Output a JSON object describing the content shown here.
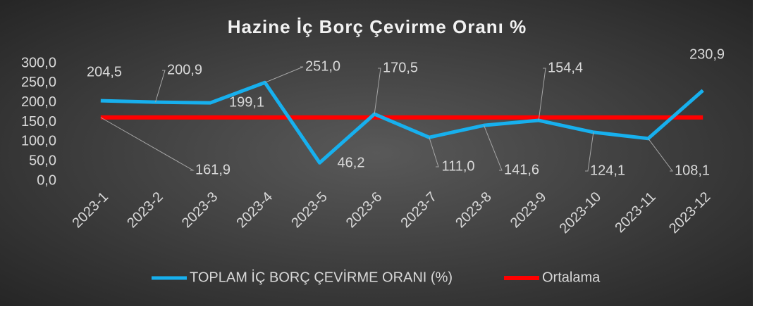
{
  "chart_data": {
    "type": "line",
    "title": "Hazine İç Borç Çevirme Oranı %",
    "categories": [
      "2023-1",
      "2023-2",
      "2023-3",
      "2023-4",
      "2023-5",
      "2023-6",
      "2023-7",
      "2023-8",
      "2023-9",
      "2023-10",
      "2023-11",
      "2023-12"
    ],
    "series": [
      {
        "name": "TOPLAM İÇ BORÇ ÇEVİRME ORANI (%)",
        "color": "#17b0ee",
        "values": [
          204.5,
          200.9,
          199.1,
          251.0,
          46.2,
          170.5,
          111.0,
          141.6,
          154.4,
          124.1,
          108.1,
          230.9
        ],
        "value_labels": [
          "204,5",
          "200,9",
          "199,1",
          "251,0",
          "46,2",
          "170,5",
          "111,0",
          "141,6",
          "154,4",
          "124,1",
          "108,1",
          "230,9"
        ]
      },
      {
        "name": "Ortalama",
        "color": "#ff0000",
        "values": [
          161.9,
          161.9,
          161.9,
          161.9,
          161.9,
          161.9,
          161.9,
          161.9,
          161.9,
          161.9,
          161.9,
          161.9
        ],
        "value_labels": [
          "161,9",
          null,
          null,
          null,
          null,
          null,
          null,
          null,
          null,
          null,
          null,
          null
        ]
      }
    ],
    "ylim": [
      0,
      300
    ],
    "yticks": [
      {
        "value": 0,
        "label": "0,0"
      },
      {
        "value": 50,
        "label": "50,0"
      },
      {
        "value": 100,
        "label": "100,0"
      },
      {
        "value": 150,
        "label": "150,0"
      },
      {
        "value": 200,
        "label": "200,0"
      },
      {
        "value": 250,
        "label": "250,0"
      },
      {
        "value": 300,
        "label": "300,0"
      }
    ],
    "legend": "bottom"
  }
}
